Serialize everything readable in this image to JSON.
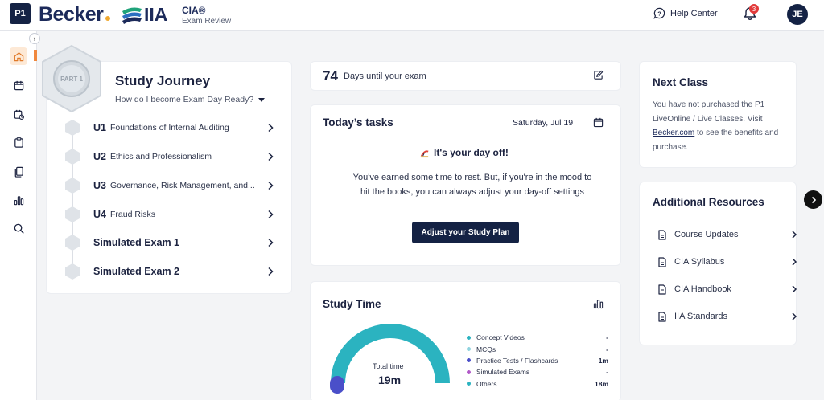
{
  "header": {
    "logo_badge": "P1",
    "brand": "Becker",
    "partner": "IIA",
    "product_title": "CIA®",
    "product_subtitle": "Exam Review",
    "help_label": "Help Center",
    "notification_count": "3",
    "avatar_initials": "JE"
  },
  "nav": {
    "collapse_glyph": "›",
    "items": [
      {
        "icon": "home-icon"
      },
      {
        "icon": "calendar-icon"
      },
      {
        "icon": "calendar-check-icon"
      },
      {
        "icon": "clipboard-icon"
      },
      {
        "icon": "flashcards-icon"
      },
      {
        "icon": "bar-chart-icon"
      },
      {
        "icon": "search-icon"
      }
    ]
  },
  "study_journey": {
    "badge": "PART 1",
    "title": "Study Journey",
    "subtitle": "How do I become Exam Day Ready?",
    "units": [
      {
        "code": "U1",
        "name": "Foundations of Internal Auditing"
      },
      {
        "code": "U2",
        "name": "Ethics and Professionalism"
      },
      {
        "code": "U3",
        "name": "Governance, Risk Management, and..."
      },
      {
        "code": "U4",
        "name": "Fraud Risks"
      }
    ],
    "exams": [
      "Simulated Exam 1",
      "Simulated Exam 2"
    ]
  },
  "countdown": {
    "days": "74",
    "label": "Days until your exam"
  },
  "tasks": {
    "title": "Today’s tasks",
    "date": "Saturday, Jul 19",
    "dayoff_title": "It's your day off!",
    "dayoff_message": "You've earned some time to rest. But, if you're in the mood to hit the books, you can always adjust your day-off settings",
    "button": "Adjust your Study Plan"
  },
  "study_time": {
    "title": "Study Time",
    "total_label": "Total time",
    "total_value": "19m",
    "legend": [
      {
        "name": "Concept Videos",
        "value": "-",
        "color": "#2bb3c0"
      },
      {
        "name": "MCQs",
        "value": "-",
        "color": "#8fd3df"
      },
      {
        "name": "Practice Tests / Flashcards",
        "value": "1m",
        "color": "#4a4fc9"
      },
      {
        "name": "Simulated Exams",
        "value": "-",
        "color": "#b158c8"
      },
      {
        "name": "Others",
        "value": "18m",
        "color": "#2bb3c0"
      }
    ],
    "gauge_fill_primary_color": "#2bb3c0",
    "gauge_fill_secondary_color": "#4a4fc9"
  },
  "next_class": {
    "title": "Next Class",
    "text_before": "You have not purchased the P1 LiveOnline / Live Classes. Visit ",
    "link": "Becker.com",
    "text_after": " to see the benefits and purchase."
  },
  "resources": {
    "title": "Additional Resources",
    "items": [
      "Course Updates",
      "CIA Syllabus",
      "CIA Handbook",
      "IIA Standards"
    ]
  }
}
